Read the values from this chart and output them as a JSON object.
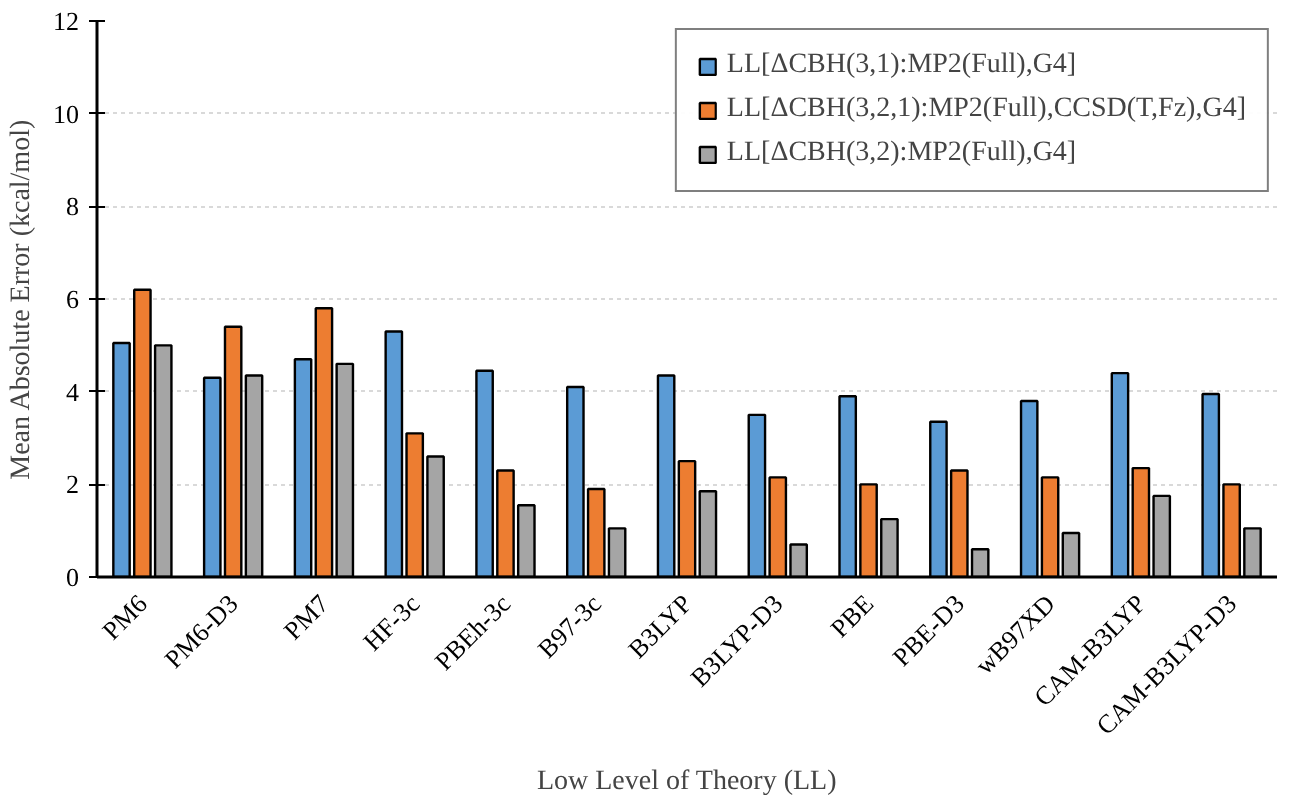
{
  "chart_data": {
    "type": "bar",
    "xlabel": "Low Level of Theory (LL)",
    "ylabel": "Mean Absolute Error (kcal/mol)",
    "categories": [
      "PM6",
      "PM6-D3",
      "PM7",
      "HF-3c",
      "PBEh-3c",
      "B97-3c",
      "B3LYP",
      "B3LYP-D3",
      "PBE",
      "PBE-D3",
      "wB97XD",
      "CAM-B3LYP",
      "CAM-B3LYP-D3"
    ],
    "series": [
      {
        "name": "LL[ΔCBH(3,1):MP2(Full),G4]",
        "color": "#5b9bd5",
        "values": [
          5.05,
          4.3,
          4.7,
          5.3,
          4.45,
          4.1,
          4.35,
          3.5,
          3.9,
          3.35,
          3.8,
          4.4,
          3.95
        ]
      },
      {
        "name": "LL[ΔCBH(3,2,1):MP2(Full),CCSD(T,Fz),G4]",
        "color": "#ed7d31",
        "values": [
          6.2,
          5.4,
          5.8,
          3.1,
          2.3,
          1.9,
          2.5,
          2.15,
          2.0,
          2.3,
          2.15,
          2.35,
          2.0
        ]
      },
      {
        "name": "LL[ΔCBH(3,2):MP2(Full),G4]",
        "color": "#a5a5a5",
        "values": [
          5.0,
          4.35,
          4.6,
          2.6,
          1.55,
          1.05,
          1.85,
          0.7,
          1.25,
          0.6,
          0.95,
          1.75,
          1.05
        ]
      }
    ],
    "ylim": [
      0,
      12
    ],
    "yticks": [
      0,
      2,
      4,
      6,
      8,
      10,
      12
    ],
    "grid": "y",
    "legend": "top right"
  }
}
